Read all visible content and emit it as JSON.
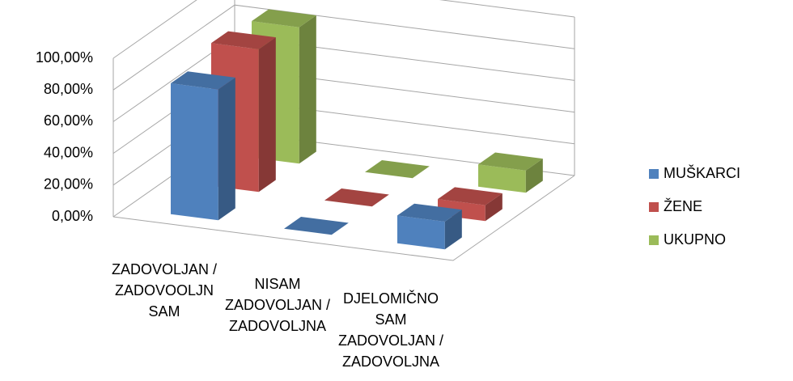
{
  "chart_data": {
    "type": "bar3d",
    "categories": [
      "ZADOVOLJAN / ZADOVOOLJN SAM",
      "NISAM ZADOVOLJAN / ZADOVOLJNA",
      "DJELOMIČNO SAM ZADOVOLJAN / ZADOVOLJNA"
    ],
    "series": [
      {
        "name": "MUŠKARCI",
        "color": "#4f81bd",
        "values": [
          82.5,
          0,
          17.5
        ]
      },
      {
        "name": "ŽENE",
        "color": "#c0504d",
        "values": [
          90,
          0,
          10
        ]
      },
      {
        "name": "UKUPNO",
        "color": "#9bbb59",
        "values": [
          86,
          0,
          14
        ]
      }
    ],
    "ylim": [
      0,
      100
    ],
    "yticks": [
      {
        "value": 0,
        "label": "0,00%"
      },
      {
        "value": 20,
        "label": "20,00%"
      },
      {
        "value": 40,
        "label": "40,00%"
      },
      {
        "value": 60,
        "label": "60,00%"
      },
      {
        "value": 80,
        "label": "80,00%"
      },
      {
        "value": 100,
        "label": "100,00%"
      }
    ],
    "grid": true,
    "legend": "right"
  }
}
